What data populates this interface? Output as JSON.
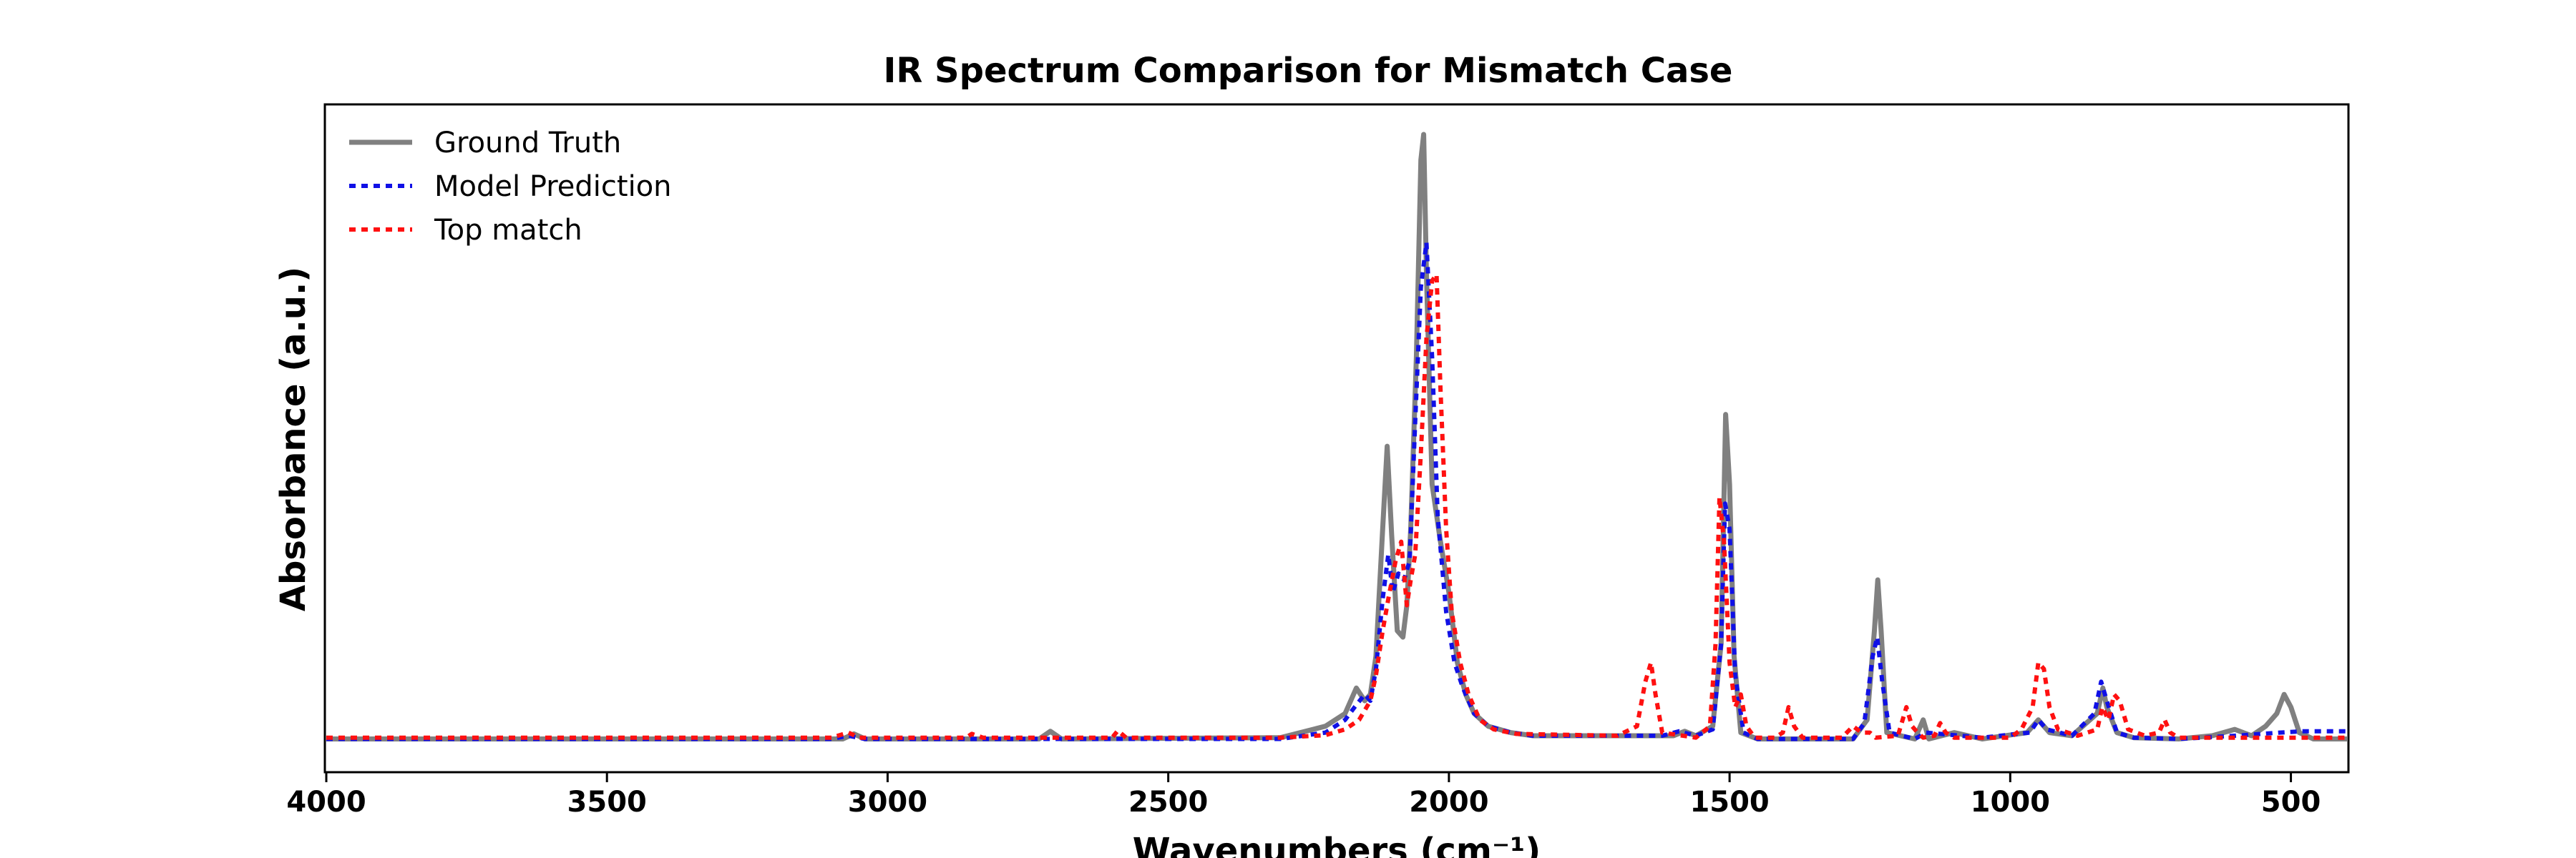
{
  "chart_data": {
    "type": "line",
    "title": "IR Spectrum Comparison for Mismatch Case",
    "xlabel": "Wavenumbers (cm⁻¹)",
    "ylabel": "Absorbance (a.u.)",
    "xlim": [
      4000,
      400
    ],
    "ylim": [
      0,
      1.0
    ],
    "x_reversed": true,
    "x_ticks": [
      4000,
      3500,
      3000,
      2500,
      2000,
      1500,
      1000,
      500
    ],
    "y_ticks_shown": false,
    "grid": false,
    "legend_position": "top-left",
    "series": [
      {
        "name": "Ground Truth",
        "color": "#808080",
        "style": "solid",
        "points": [
          [
            4000,
            0.05
          ],
          [
            3500,
            0.05
          ],
          [
            3080,
            0.05
          ],
          [
            3060,
            0.058
          ],
          [
            3040,
            0.05
          ],
          [
            2730,
            0.05
          ],
          [
            2710,
            0.062
          ],
          [
            2690,
            0.05
          ],
          [
            2300,
            0.052
          ],
          [
            2220,
            0.07
          ],
          [
            2185,
            0.09
          ],
          [
            2165,
            0.13
          ],
          [
            2150,
            0.11
          ],
          [
            2140,
            0.12
          ],
          [
            2130,
            0.18
          ],
          [
            2118,
            0.38
          ],
          [
            2110,
            0.51
          ],
          [
            2102,
            0.37
          ],
          [
            2092,
            0.22
          ],
          [
            2082,
            0.21
          ],
          [
            2075,
            0.26
          ],
          [
            2068,
            0.38
          ],
          [
            2058,
            0.65
          ],
          [
            2050,
            0.96
          ],
          [
            2045,
            1.0
          ],
          [
            2040,
            0.78
          ],
          [
            2030,
            0.45
          ],
          [
            2015,
            0.36
          ],
          [
            2000,
            0.28
          ],
          [
            1985,
            0.17
          ],
          [
            1970,
            0.12
          ],
          [
            1955,
            0.09
          ],
          [
            1930,
            0.07
          ],
          [
            1890,
            0.06
          ],
          [
            1850,
            0.055
          ],
          [
            1600,
            0.055
          ],
          [
            1580,
            0.062
          ],
          [
            1560,
            0.055
          ],
          [
            1530,
            0.07
          ],
          [
            1515,
            0.2
          ],
          [
            1507,
            0.56
          ],
          [
            1500,
            0.45
          ],
          [
            1492,
            0.18
          ],
          [
            1480,
            0.06
          ],
          [
            1450,
            0.05
          ],
          [
            1280,
            0.05
          ],
          [
            1255,
            0.08
          ],
          [
            1242,
            0.22
          ],
          [
            1236,
            0.3
          ],
          [
            1230,
            0.22
          ],
          [
            1220,
            0.06
          ],
          [
            1170,
            0.05
          ],
          [
            1155,
            0.08
          ],
          [
            1145,
            0.05
          ],
          [
            1100,
            0.06
          ],
          [
            1050,
            0.05
          ],
          [
            970,
            0.06
          ],
          [
            950,
            0.08
          ],
          [
            930,
            0.06
          ],
          [
            890,
            0.055
          ],
          [
            845,
            0.09
          ],
          [
            835,
            0.13
          ],
          [
            828,
            0.1
          ],
          [
            810,
            0.06
          ],
          [
            780,
            0.052
          ],
          [
            700,
            0.05
          ],
          [
            640,
            0.055
          ],
          [
            600,
            0.065
          ],
          [
            570,
            0.055
          ],
          [
            545,
            0.07
          ],
          [
            525,
            0.09
          ],
          [
            512,
            0.12
          ],
          [
            500,
            0.1
          ],
          [
            485,
            0.06
          ],
          [
            460,
            0.05
          ],
          [
            400,
            0.05
          ]
        ]
      },
      {
        "name": "Model Prediction",
        "color": "#1010e6",
        "style": "dotted",
        "points": [
          [
            4000,
            0.05
          ],
          [
            3100,
            0.05
          ],
          [
            3070,
            0.055
          ],
          [
            3040,
            0.05
          ],
          [
            2300,
            0.05
          ],
          [
            2220,
            0.06
          ],
          [
            2185,
            0.08
          ],
          [
            2168,
            0.1
          ],
          [
            2150,
            0.12
          ],
          [
            2140,
            0.11
          ],
          [
            2130,
            0.16
          ],
          [
            2118,
            0.27
          ],
          [
            2108,
            0.34
          ],
          [
            2100,
            0.28
          ],
          [
            2090,
            0.31
          ],
          [
            2080,
            0.3
          ],
          [
            2070,
            0.33
          ],
          [
            2060,
            0.55
          ],
          [
            2050,
            0.76
          ],
          [
            2040,
            0.83
          ],
          [
            2030,
            0.65
          ],
          [
            2020,
            0.4
          ],
          [
            2005,
            0.25
          ],
          [
            1990,
            0.17
          ],
          [
            1975,
            0.13
          ],
          [
            1955,
            0.09
          ],
          [
            1930,
            0.07
          ],
          [
            1890,
            0.06
          ],
          [
            1850,
            0.055
          ],
          [
            1620,
            0.055
          ],
          [
            1590,
            0.062
          ],
          [
            1560,
            0.055
          ],
          [
            1530,
            0.065
          ],
          [
            1515,
            0.2
          ],
          [
            1508,
            0.42
          ],
          [
            1500,
            0.38
          ],
          [
            1490,
            0.15
          ],
          [
            1475,
            0.06
          ],
          [
            1450,
            0.05
          ],
          [
            1280,
            0.05
          ],
          [
            1260,
            0.075
          ],
          [
            1245,
            0.18
          ],
          [
            1237,
            0.21
          ],
          [
            1228,
            0.14
          ],
          [
            1215,
            0.06
          ],
          [
            1170,
            0.05
          ],
          [
            1150,
            0.06
          ],
          [
            1050,
            0.052
          ],
          [
            965,
            0.06
          ],
          [
            950,
            0.08
          ],
          [
            935,
            0.065
          ],
          [
            890,
            0.055
          ],
          [
            850,
            0.09
          ],
          [
            838,
            0.14
          ],
          [
            828,
            0.11
          ],
          [
            810,
            0.06
          ],
          [
            780,
            0.052
          ],
          [
            700,
            0.05
          ],
          [
            600,
            0.055
          ],
          [
            520,
            0.06
          ],
          [
            480,
            0.062
          ],
          [
            440,
            0.062
          ],
          [
            400,
            0.062
          ]
        ]
      },
      {
        "name": "Top match",
        "color": "#ff1010",
        "style": "dotted",
        "points": [
          [
            4000,
            0.052
          ],
          [
            3100,
            0.052
          ],
          [
            3070,
            0.06
          ],
          [
            3050,
            0.052
          ],
          [
            2860,
            0.052
          ],
          [
            2850,
            0.058
          ],
          [
            2830,
            0.052
          ],
          [
            2600,
            0.052
          ],
          [
            2590,
            0.063
          ],
          [
            2575,
            0.052
          ],
          [
            2300,
            0.052
          ],
          [
            2220,
            0.056
          ],
          [
            2185,
            0.065
          ],
          [
            2160,
            0.08
          ],
          [
            2140,
            0.11
          ],
          [
            2130,
            0.15
          ],
          [
            2118,
            0.22
          ],
          [
            2108,
            0.27
          ],
          [
            2095,
            0.33
          ],
          [
            2085,
            0.36
          ],
          [
            2075,
            0.26
          ],
          [
            2068,
            0.3
          ],
          [
            2060,
            0.34
          ],
          [
            2050,
            0.5
          ],
          [
            2040,
            0.68
          ],
          [
            2030,
            0.77
          ],
          [
            2022,
            0.78
          ],
          [
            2015,
            0.6
          ],
          [
            2005,
            0.38
          ],
          [
            1995,
            0.25
          ],
          [
            1980,
            0.17
          ],
          [
            1965,
            0.12
          ],
          [
            1945,
            0.08
          ],
          [
            1920,
            0.065
          ],
          [
            1880,
            0.058
          ],
          [
            1700,
            0.055
          ],
          [
            1665,
            0.07
          ],
          [
            1650,
            0.14
          ],
          [
            1640,
            0.17
          ],
          [
            1632,
            0.12
          ],
          [
            1620,
            0.06
          ],
          [
            1560,
            0.052
          ],
          [
            1535,
            0.07
          ],
          [
            1525,
            0.2
          ],
          [
            1518,
            0.43
          ],
          [
            1510,
            0.36
          ],
          [
            1500,
            0.17
          ],
          [
            1490,
            0.1
          ],
          [
            1480,
            0.12
          ],
          [
            1470,
            0.07
          ],
          [
            1455,
            0.052
          ],
          [
            1420,
            0.052
          ],
          [
            1405,
            0.06
          ],
          [
            1395,
            0.1
          ],
          [
            1385,
            0.07
          ],
          [
            1370,
            0.052
          ],
          [
            1300,
            0.052
          ],
          [
            1280,
            0.07
          ],
          [
            1265,
            0.06
          ],
          [
            1250,
            0.06
          ],
          [
            1240,
            0.052
          ],
          [
            1200,
            0.055
          ],
          [
            1185,
            0.1
          ],
          [
            1175,
            0.07
          ],
          [
            1165,
            0.06
          ],
          [
            1155,
            0.052
          ],
          [
            1135,
            0.055
          ],
          [
            1125,
            0.075
          ],
          [
            1115,
            0.06
          ],
          [
            1100,
            0.052
          ],
          [
            1000,
            0.052
          ],
          [
            980,
            0.065
          ],
          [
            960,
            0.1
          ],
          [
            950,
            0.17
          ],
          [
            940,
            0.16
          ],
          [
            930,
            0.1
          ],
          [
            915,
            0.065
          ],
          [
            880,
            0.055
          ],
          [
            845,
            0.065
          ],
          [
            836,
            0.1
          ],
          [
            825,
            0.08
          ],
          [
            815,
            0.12
          ],
          [
            805,
            0.11
          ],
          [
            790,
            0.065
          ],
          [
            760,
            0.055
          ],
          [
            735,
            0.06
          ],
          [
            725,
            0.08
          ],
          [
            715,
            0.06
          ],
          [
            700,
            0.052
          ],
          [
            600,
            0.052
          ],
          [
            520,
            0.052
          ],
          [
            460,
            0.052
          ],
          [
            400,
            0.052
          ]
        ]
      }
    ]
  }
}
